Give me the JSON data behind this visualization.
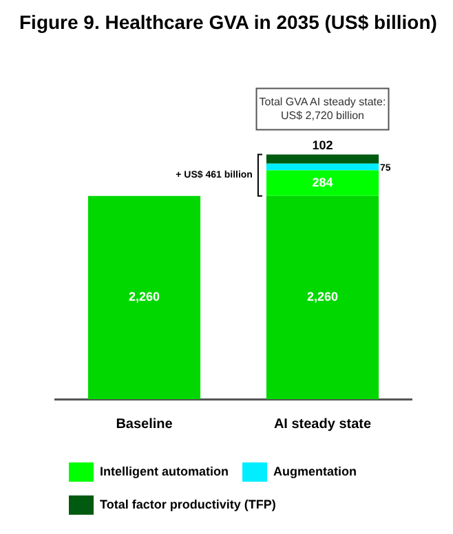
{
  "chart_data": {
    "type": "bar",
    "title": "Figure 9. Healthcare GVA in 2035 (US$ billion)",
    "categories": [
      "Baseline",
      "AI steady state"
    ],
    "stacked": true,
    "legend": "bottom",
    "grid": false,
    "tick_labels": "x",
    "series": [
      {
        "color": "#00d800",
        "values": [
          2260,
          2260
        ],
        "value_labels": [
          "2,260",
          "2,260"
        ]
      },
      {
        "name": "Intelligent automation",
        "color": "#00ff00",
        "values": [
          null,
          284
        ],
        "value_labels": [
          null,
          "284"
        ]
      },
      {
        "name": "Augmentation",
        "color": "#00eeff",
        "values": [
          null,
          75
        ],
        "value_labels": [
          null,
          "75"
        ]
      },
      {
        "name": "Total factor productivity (TFP)",
        "color": "#005a10",
        "values": [
          null,
          102
        ],
        "value_labels": [
          null,
          "102"
        ]
      }
    ],
    "annotations": [
      "Total GVA AI steady state: US$ 2,720 billion",
      "+ US$ 461 billion"
    ]
  }
}
